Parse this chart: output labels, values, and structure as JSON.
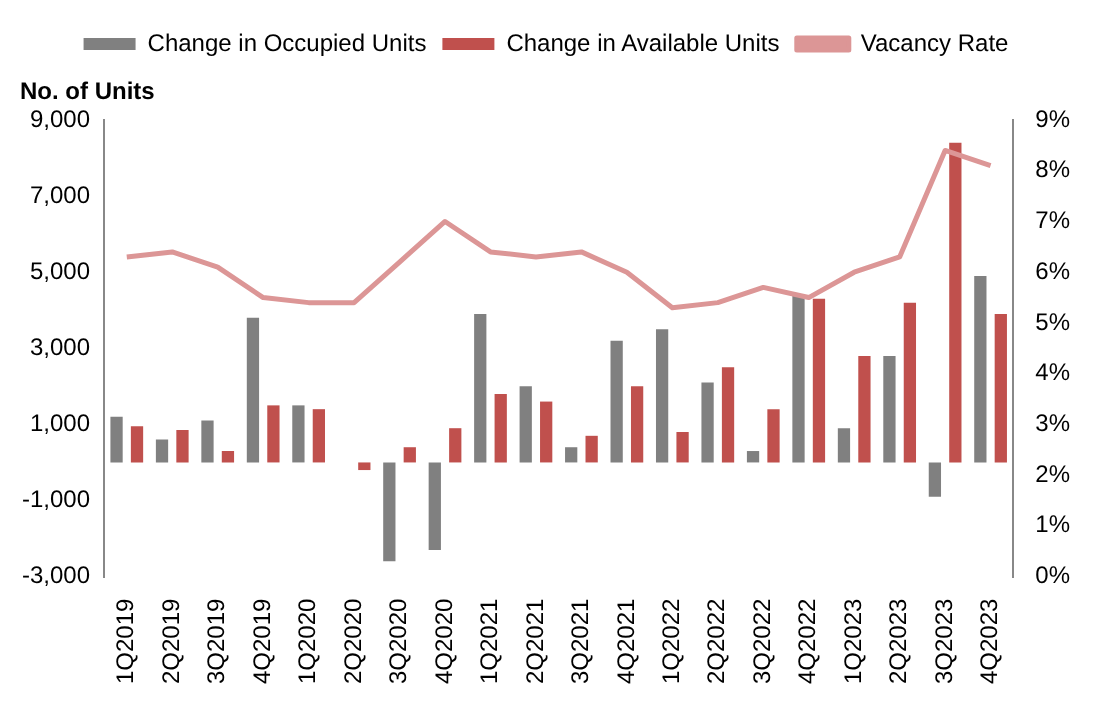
{
  "chart_data": {
    "type": "bar",
    "ylabel": "No. of Units",
    "categories": [
      "1Q2019",
      "2Q2019",
      "3Q2019",
      "4Q2019",
      "1Q2020",
      "2Q2020",
      "3Q2020",
      "4Q2020",
      "1Q2021",
      "2Q2021",
      "3Q2021",
      "4Q2021",
      "1Q2022",
      "2Q2022",
      "3Q2022",
      "4Q2022",
      "1Q2023",
      "2Q2023",
      "3Q2023",
      "4Q2023"
    ],
    "series": [
      {
        "name": "Change in Occupied Units",
        "color": "#808080",
        "values": [
          1200,
          600,
          1100,
          3800,
          1500,
          0,
          -2600,
          -2300,
          3900,
          2000,
          400,
          3200,
          3500,
          2100,
          300,
          4400,
          900,
          2800,
          -900,
          4900
        ]
      },
      {
        "name": "Change in Available Units",
        "color": "#c0504d",
        "values": [
          950,
          850,
          300,
          1500,
          1400,
          -200,
          400,
          900,
          1800,
          1600,
          700,
          2000,
          800,
          2500,
          1400,
          4300,
          2800,
          4200,
          8400,
          3900
        ]
      },
      {
        "name": "Vacancy Rate",
        "type": "line",
        "axis": "y2",
        "color": "#dc9696",
        "values": [
          6.3,
          6.4,
          6.1,
          5.5,
          5.4,
          5.4,
          6.2,
          7.0,
          6.4,
          6.3,
          6.4,
          6.0,
          5.3,
          5.4,
          5.7,
          5.5,
          6.0,
          6.3,
          8.4,
          8.1
        ]
      }
    ],
    "ylim": [
      -3000,
      9000
    ],
    "yticks": [
      {
        "value": -3000,
        "label": "-3,000"
      },
      {
        "value": -1000,
        "label": "-1,000"
      },
      {
        "value": 1000,
        "label": "1,000"
      },
      {
        "value": 3000,
        "label": "3,000"
      },
      {
        "value": 5000,
        "label": "5,000"
      },
      {
        "value": 7000,
        "label": "7,000"
      },
      {
        "value": 9000,
        "label": "9,000"
      }
    ],
    "y2lim": [
      0,
      9
    ],
    "y2ticks": [
      {
        "value": 0,
        "label": "0%"
      },
      {
        "value": 1,
        "label": "1%"
      },
      {
        "value": 2,
        "label": "2%"
      },
      {
        "value": 3,
        "label": "3%"
      },
      {
        "value": 4,
        "label": "4%"
      },
      {
        "value": 5,
        "label": "5%"
      },
      {
        "value": 6,
        "label": "6%"
      },
      {
        "value": 7,
        "label": "7%"
      },
      {
        "value": 8,
        "label": "8%"
      },
      {
        "value": 9,
        "label": "9%"
      }
    ],
    "legend": "top",
    "grid": false,
    "marker": "none"
  }
}
